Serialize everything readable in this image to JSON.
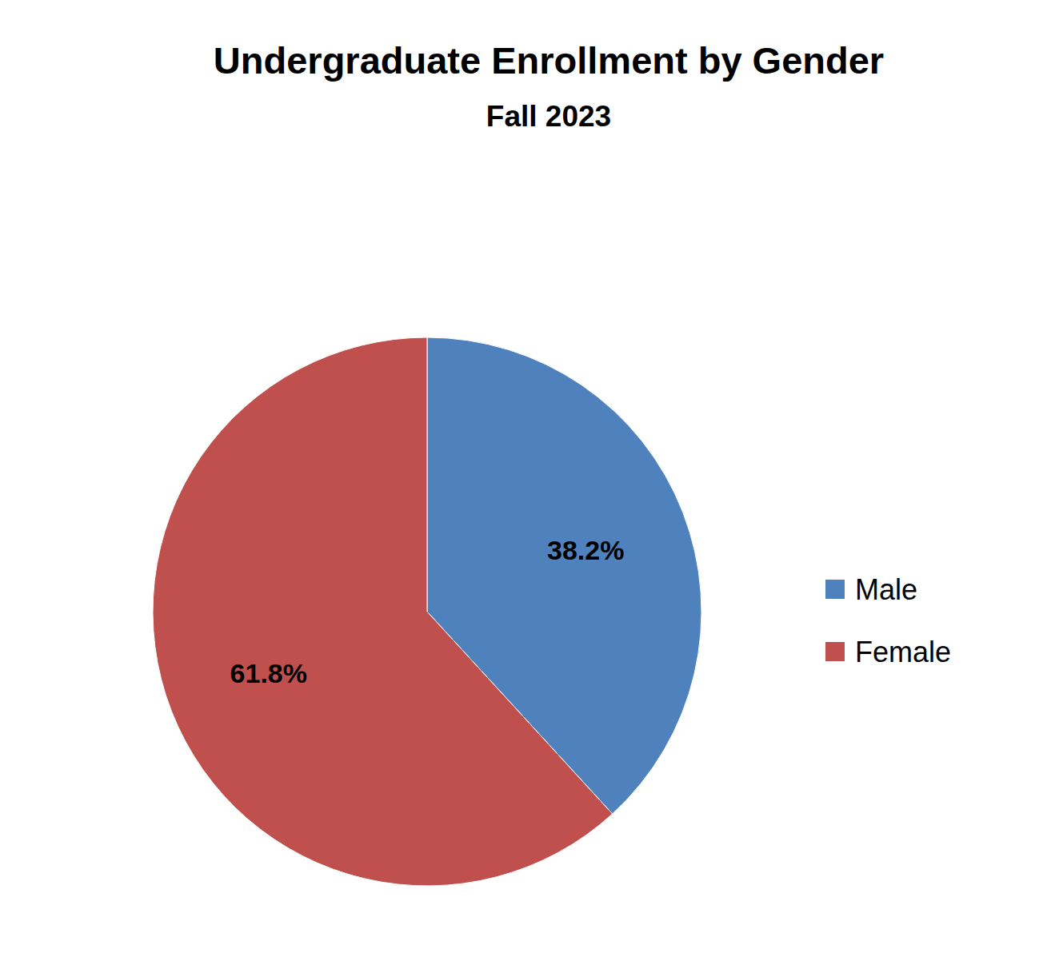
{
  "chart_data": {
    "type": "pie",
    "title": "Undergraduate Enrollment by Gender",
    "subtitle": "Fall 2023",
    "categories": [
      "Male",
      "Female"
    ],
    "values": [
      38.2,
      61.8
    ],
    "value_labels": [
      "38.2%",
      "61.8%"
    ],
    "colors": [
      "#4f81bd",
      "#c0504d"
    ],
    "data_labels": true,
    "legend": "right"
  }
}
